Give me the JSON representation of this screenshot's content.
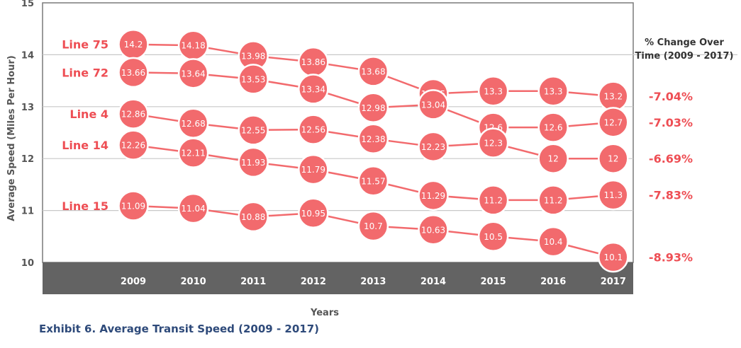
{
  "chart_data": {
    "type": "line",
    "xlabel": "Years",
    "ylabel": "Average Speed (Miles Per Hour)",
    "ylim": [
      10,
      15
    ],
    "yticks": [
      "10",
      "11",
      "12",
      "13",
      "14",
      "15"
    ],
    "categories": [
      "2009",
      "2010",
      "2011",
      "2012",
      "2013",
      "2014",
      "2015",
      "2016",
      "2017"
    ],
    "series": [
      {
        "name": "Line 75",
        "values": [
          14.2,
          14.18,
          13.98,
          13.86,
          13.68,
          13.25,
          13.3,
          13.3,
          13.2
        ],
        "labels": [
          "14.2",
          "14.18",
          "13.98",
          "13.86",
          "13.68",
          "13.25",
          "13.3",
          "13.3",
          "13.2"
        ],
        "change": "-7.04%"
      },
      {
        "name": "Line 72",
        "values": [
          13.66,
          13.64,
          13.53,
          13.34,
          12.98,
          13.04,
          12.6,
          12.6,
          12.7
        ],
        "labels": [
          "13.66",
          "13.64",
          "13.53",
          "13.34",
          "12.98",
          "13.04",
          "12.6",
          "12.6",
          "12.7"
        ],
        "change": "-7.03%"
      },
      {
        "name": "Line 4",
        "values": [
          12.86,
          12.68,
          12.55,
          12.56,
          12.38,
          12.23,
          12.3,
          12,
          12
        ],
        "labels": [
          "12.86",
          "12.68",
          "12.55",
          "12.56",
          "12.38",
          "12.23",
          "12.3",
          "12",
          "12"
        ],
        "change": "-6.69%"
      },
      {
        "name": "Line 14",
        "values": [
          12.26,
          12.11,
          11.93,
          11.79,
          11.57,
          11.29,
          11.2,
          11.2,
          11.3
        ],
        "labels": [
          "12.26",
          "12.11",
          "11.93",
          "11.79",
          "11.57",
          "11.29",
          "11.2",
          "11.2",
          "11.3"
        ],
        "change": "-7.83%"
      },
      {
        "name": "Line 15",
        "values": [
          11.09,
          11.04,
          10.88,
          10.95,
          10.7,
          10.63,
          10.5,
          10.4,
          10.1
        ],
        "labels": [
          "11.09",
          "11.04",
          "10.88",
          "10.95",
          "10.7",
          "10.63",
          "10.5",
          "10.4",
          "10.1"
        ],
        "change": "-8.93%"
      }
    ],
    "change_title_line1": "% Change Over",
    "change_title_line2": "Time (2009 - 2017)",
    "grid": true,
    "colors": {
      "marker": "#f26a6d",
      "label": "#ee4e54",
      "marker_text": "#ffffff",
      "axis_band": "#636363",
      "grid": "#c8c8c8",
      "axis_text": "#555555"
    }
  },
  "caption": "Exhibit 6. Average Transit Speed (2009 - 2017)"
}
